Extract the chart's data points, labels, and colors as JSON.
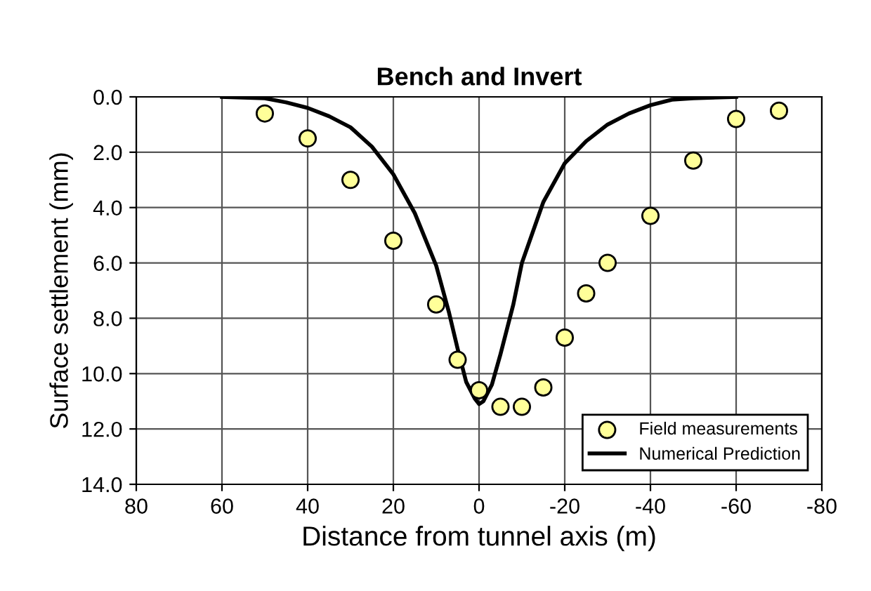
{
  "chart_data": {
    "type": "scatter",
    "title": "Bench and Invert",
    "xlabel": "Distance from tunnel axis (m)",
    "ylabel": "Surface settlement (mm)",
    "xlim": [
      80,
      -80
    ],
    "xticks": [
      80,
      60,
      40,
      20,
      0,
      -20,
      -40,
      -60,
      -80
    ],
    "ylim": [
      14,
      0
    ],
    "yticks": [
      {
        "value": 0,
        "label": "0.0"
      },
      {
        "value": 2,
        "label": "2.0"
      },
      {
        "value": 4,
        "label": "4.0"
      },
      {
        "value": 6,
        "label": "6.0"
      },
      {
        "value": 8,
        "label": "8.0"
      },
      {
        "value": 10,
        "label": "10.0"
      },
      {
        "value": 12,
        "label": "12.0"
      },
      {
        "value": 14,
        "label": "14.0"
      }
    ],
    "grid": true,
    "legend": "bottom right",
    "series": [
      {
        "name": "Field measurements",
        "color": "#ffff99",
        "marker": "circle",
        "x": [
          50,
          40,
          30,
          20,
          10,
          5,
          0,
          -5,
          -10,
          -15,
          -20,
          -25,
          -30,
          -40,
          -50,
          -60,
          -70
        ],
        "values": [
          0.6,
          1.5,
          3.0,
          5.2,
          7.5,
          9.5,
          10.6,
          11.2,
          11.2,
          10.5,
          8.7,
          7.1,
          6.0,
          4.3,
          2.3,
          0.8,
          0.5
        ]
      },
      {
        "name": "Numerical Prediction",
        "type": "line",
        "color": "#000000",
        "marker": "none",
        "line_style": "solid",
        "x": [
          60,
          50,
          45,
          40,
          35,
          30,
          25,
          20,
          15,
          10,
          7,
          5,
          3,
          1,
          0,
          -1,
          -3,
          -5,
          -8,
          -10,
          -15,
          -20,
          -25,
          -30,
          -35,
          -40,
          -45,
          -50,
          -60
        ],
        "values": [
          0,
          0.05,
          0.2,
          0.4,
          0.7,
          1.1,
          1.8,
          2.8,
          4.2,
          6.1,
          7.8,
          9.1,
          10.3,
          10.9,
          11.1,
          11.0,
          10.4,
          9.3,
          7.5,
          6.0,
          3.8,
          2.4,
          1.6,
          1.0,
          0.6,
          0.3,
          0.1,
          0.05,
          0
        ]
      }
    ]
  }
}
